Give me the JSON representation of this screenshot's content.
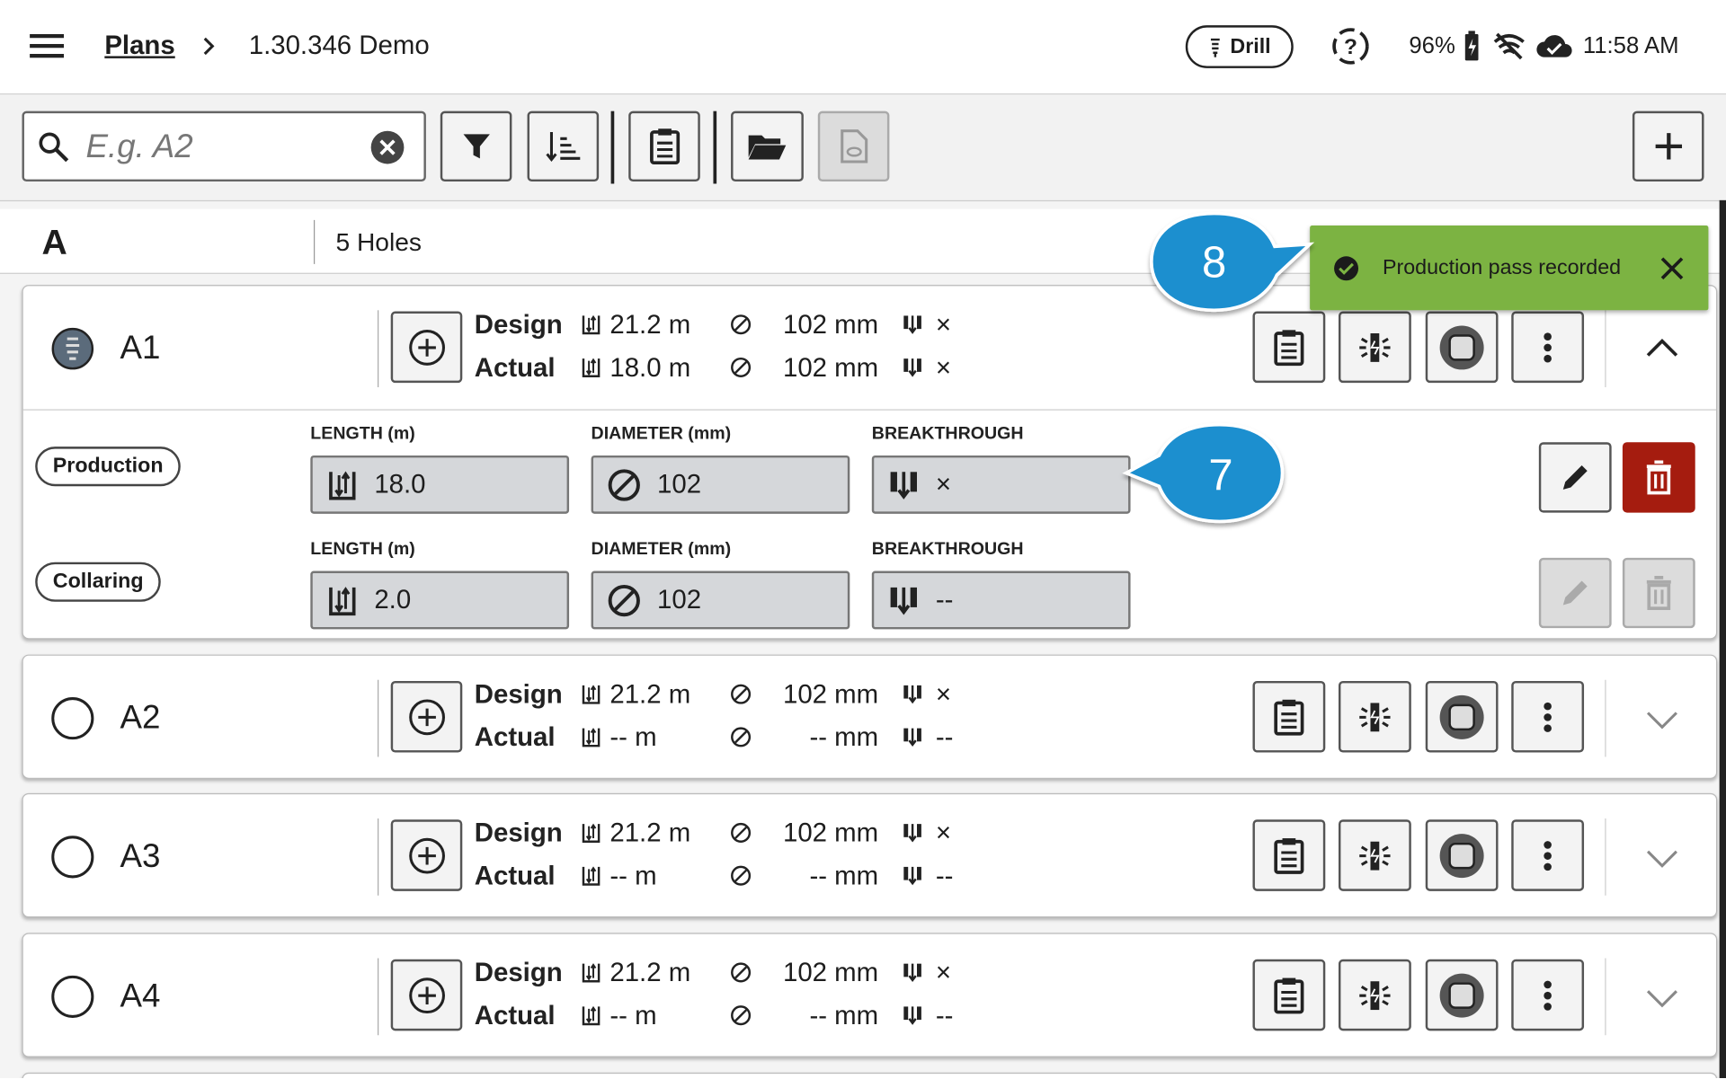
{
  "header": {
    "breadcrumb": "Plans",
    "plan_name": "1.30.346 Demo",
    "mode": "Drill",
    "battery": "96%",
    "time": "11:58 AM"
  },
  "toolbar": {
    "search_placeholder": "E.g. A2"
  },
  "group": {
    "name": "A",
    "count": "5 Holes"
  },
  "toast": {
    "message": "Production pass recorded"
  },
  "callouts": [
    "8",
    "7"
  ],
  "row_labels": {
    "design": "Design",
    "actual": "Actual"
  },
  "field_labels": {
    "length": "LENGTH (m)",
    "diameter": "DIAMETER (mm)",
    "breakthrough": "BREAKTHROUGH"
  },
  "holes": [
    {
      "name": "A1",
      "status": "drilled",
      "expanded": true,
      "design": {
        "length": "21.2 m",
        "diameter": "102 mm",
        "breakthrough": "×"
      },
      "actual": {
        "length": "18.0 m",
        "diameter": "102 mm",
        "breakthrough": "×"
      },
      "passes": [
        {
          "name": "Production",
          "length": "18.0",
          "diameter": "102",
          "breakthrough": "×",
          "enabled": true
        },
        {
          "name": "Collaring",
          "length": "2.0",
          "diameter": "102",
          "breakthrough": "--",
          "enabled": false
        }
      ]
    },
    {
      "name": "A2",
      "status": "pending",
      "expanded": false,
      "design": {
        "length": "21.2 m",
        "diameter": "102 mm",
        "breakthrough": "×"
      },
      "actual": {
        "length": "-- m",
        "diameter": "-- mm",
        "breakthrough": "--"
      }
    },
    {
      "name": "A3",
      "status": "pending",
      "expanded": false,
      "design": {
        "length": "21.2 m",
        "diameter": "102 mm",
        "breakthrough": "×"
      },
      "actual": {
        "length": "-- m",
        "diameter": "-- mm",
        "breakthrough": "--"
      }
    },
    {
      "name": "A4",
      "status": "pending",
      "expanded": false,
      "design": {
        "length": "21.2 m",
        "diameter": "102 mm",
        "breakthrough": "×"
      },
      "actual": {
        "length": "-- m",
        "diameter": "-- mm",
        "breakthrough": "--"
      }
    }
  ]
}
